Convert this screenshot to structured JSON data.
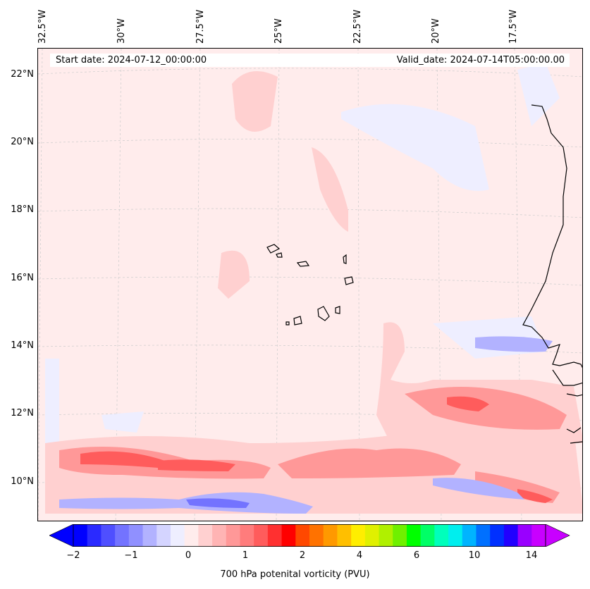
{
  "header": {
    "start_date": "Start date: 2024-07-12_00:00:00",
    "valid_date": "Valid_date: 2024-07-14T05:00:00.00"
  },
  "axes": {
    "lon_labels": [
      "32.5°W",
      "30°W",
      "27.5°W",
      "25°W",
      "22.5°W",
      "20°W",
      "17.5°W"
    ],
    "lat_labels": [
      "22°N",
      "20°N",
      "18°N",
      "16°N",
      "14°N",
      "12°N",
      "10°N"
    ]
  },
  "colorbar": {
    "label": "700 hPa potenital vorticity (PVU)",
    "tick_labels": [
      "−2",
      "−1",
      "0",
      "1",
      "2",
      "4",
      "6",
      "10",
      "14"
    ],
    "colors": [
      "#0000ff",
      "#2a2aff",
      "#4f4fff",
      "#7373ff",
      "#9090ff",
      "#b2b2ff",
      "#d4d4ff",
      "#eeeeff",
      "#ffecec",
      "#ffd0d0",
      "#ffb4b4",
      "#ff9898",
      "#ff7c7c",
      "#ff5c5c",
      "#ff3030",
      "#ff0000",
      "#ff4800",
      "#ff7200",
      "#ff9900",
      "#ffbf00",
      "#ffee00",
      "#e0f000",
      "#b0f000",
      "#70f000",
      "#00ff00",
      "#00ff66",
      "#00ffbb",
      "#00eeee",
      "#00b4ff",
      "#0070ff",
      "#0030ff",
      "#2200ff",
      "#9900ff",
      "#c800ff"
    ]
  },
  "colors": {
    "background_field": "#ffecec",
    "coastline": "#000000",
    "gridline": "#c8c8c8"
  }
}
